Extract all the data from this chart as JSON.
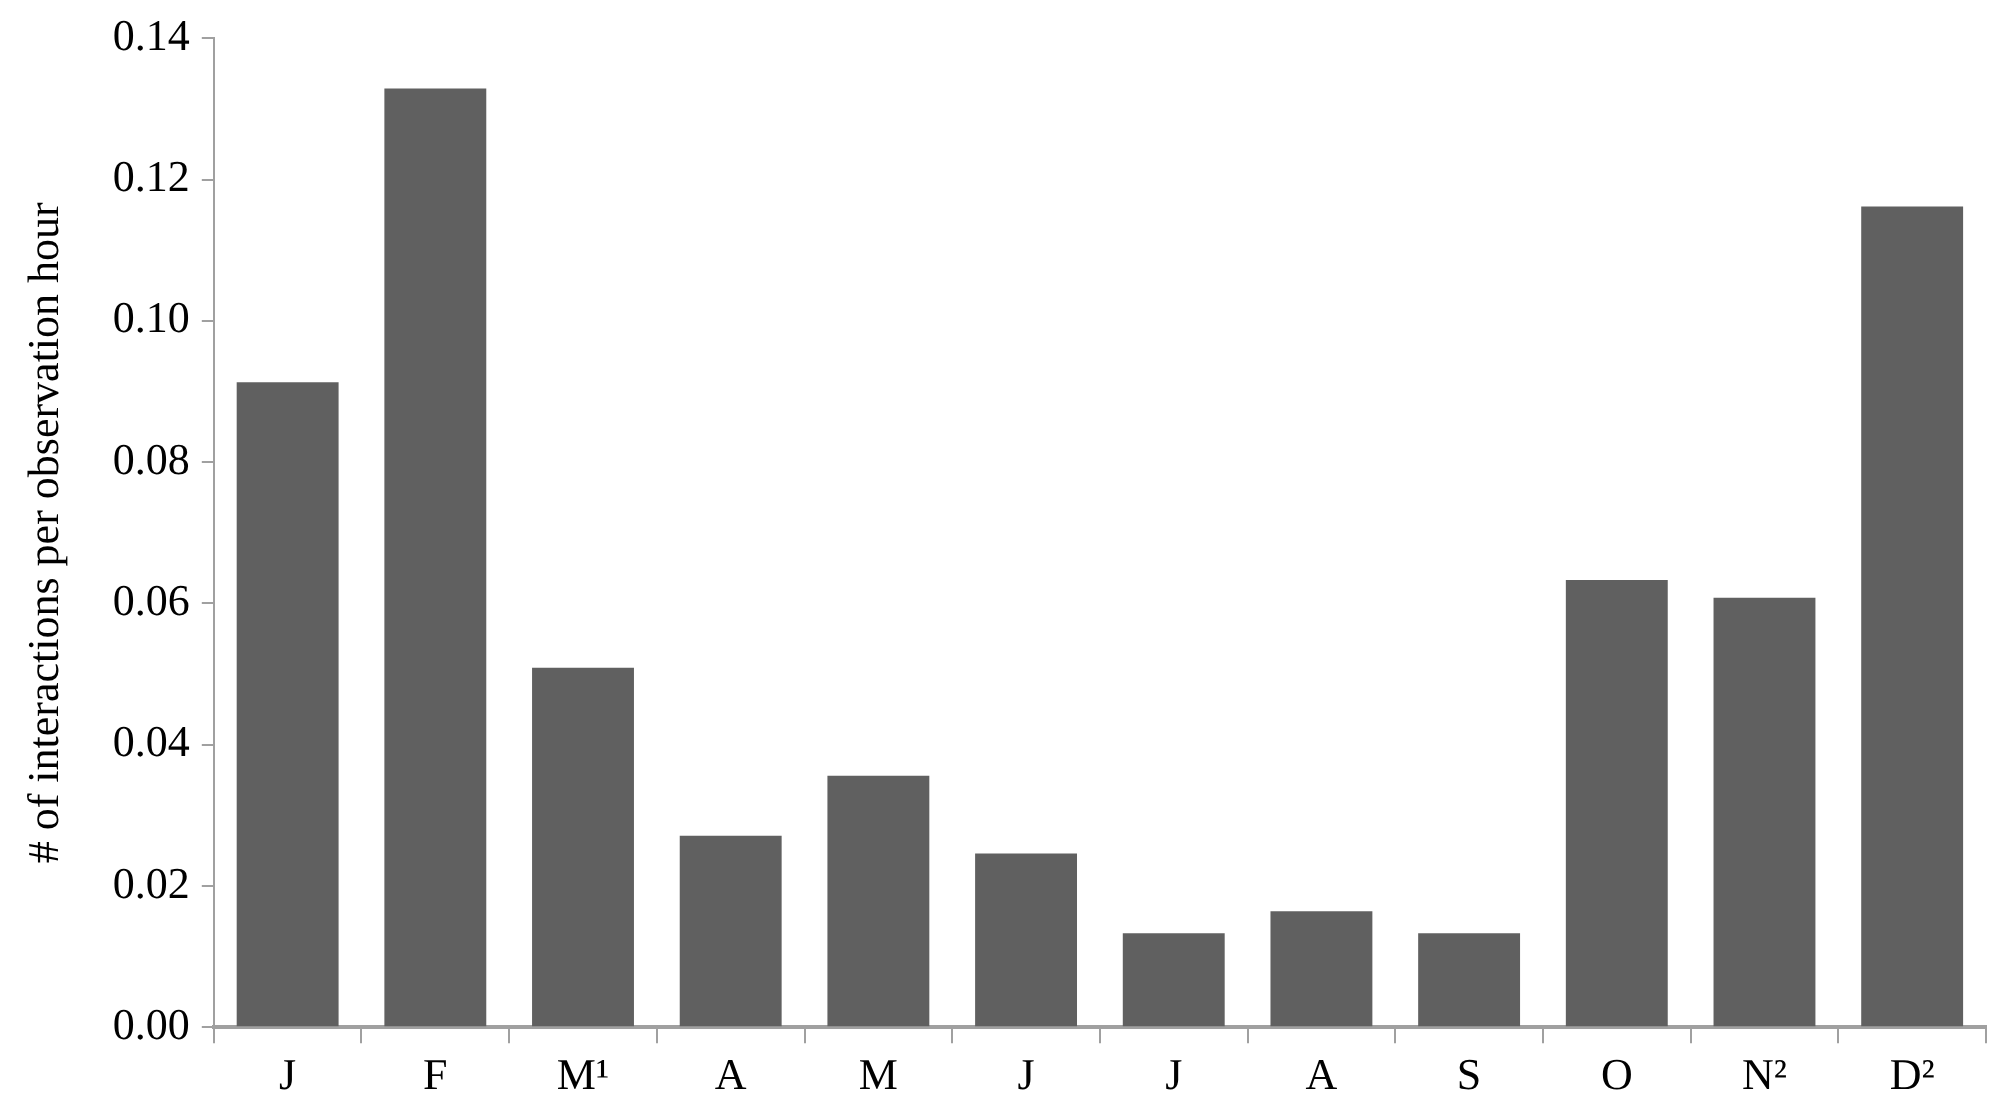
{
  "chart_data": {
    "type": "bar",
    "ylabel": "# of interactions per observation hour",
    "categories": [
      "J",
      "F",
      "M¹",
      "A",
      "M",
      "J",
      "J",
      "A",
      "S",
      "O",
      "N²",
      "D²"
    ],
    "values": [
      0.0913,
      0.1329,
      0.0509,
      0.0271,
      0.0356,
      0.0246,
      0.0133,
      0.0164,
      0.0133,
      0.0633,
      0.0608,
      0.1162
    ],
    "color": "#606060",
    "ylim": [
      0,
      0.14
    ],
    "yticks": [
      {
        "value": 0,
        "label": "0.00"
      },
      0.02,
      0.04,
      0.06,
      0.08,
      {
        "value": 0.1,
        "label": "0.10"
      },
      0.12,
      0.14
    ]
  }
}
